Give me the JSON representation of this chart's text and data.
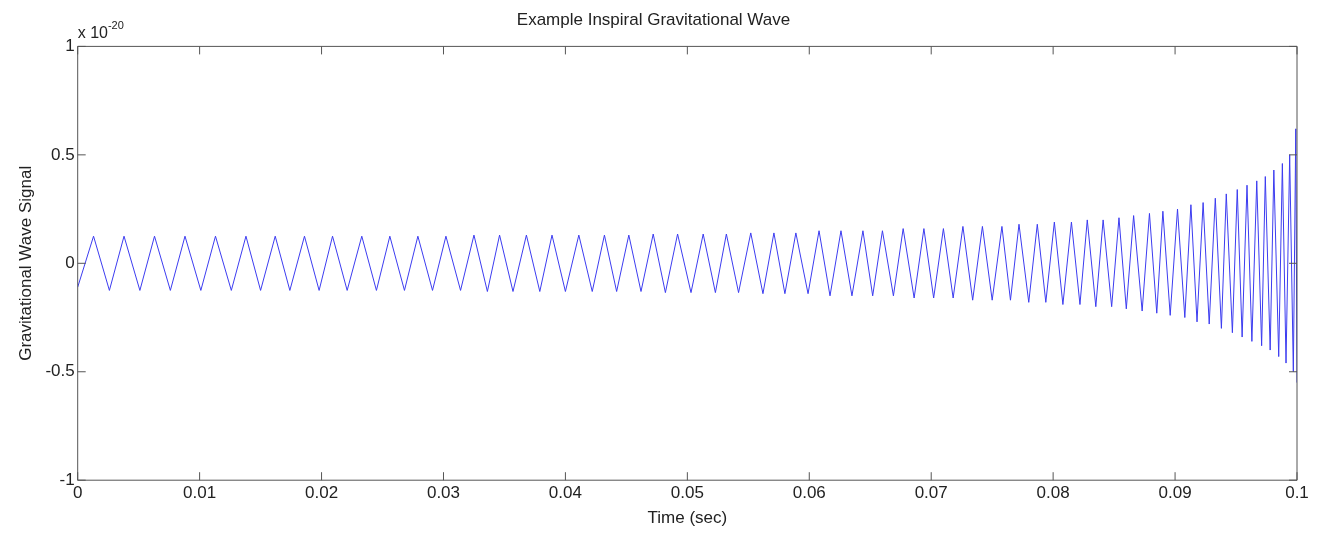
{
  "chart_data": {
    "type": "line",
    "title": "Example Inspiral Gravitational Wave",
    "xlabel": "Time (sec)",
    "ylabel": "Gravitational Wave Signal",
    "annotations": [
      "x 10$^{-20}$"
    ],
    "xlim": [
      0,
      0.1
    ],
    "xticks": [
      0,
      0.01,
      0.02,
      0.03,
      0.04,
      0.05,
      0.06,
      0.07,
      0.08,
      0.09,
      0.1
    ],
    "ylim": [
      -1,
      1
    ],
    "yticks": [
      -1,
      -0.5,
      0,
      0.5,
      1
    ],
    "marker": "none",
    "line_style": "solid",
    "legend": false,
    "series": [
      {
        "color": "#3c3cf0",
        "x": [
          0,
          0.0013,
          0.0026,
          0.0038,
          0.0051,
          0.0063,
          0.0076,
          0.0088,
          0.0101,
          0.0113,
          0.0126,
          0.0138,
          0.015,
          0.0162,
          0.0174,
          0.0186,
          0.0198,
          0.0209,
          0.0221,
          0.0233,
          0.0245,
          0.0256,
          0.0268,
          0.0279,
          0.0291,
          0.0302,
          0.0314,
          0.0325,
          0.0336,
          0.0346,
          0.0357,
          0.0368,
          0.0379,
          0.0389,
          0.04,
          0.0411,
          0.0422,
          0.0432,
          0.0442,
          0.0452,
          0.0462,
          0.0472,
          0.0482,
          0.0492,
          0.0503,
          0.0513,
          0.0523,
          0.0532,
          0.0542,
          0.0552,
          0.0562,
          0.0571,
          0.058,
          0.0589,
          0.0599,
          0.0608,
          0.0617,
          0.0626,
          0.0635,
          0.0644,
          0.0652,
          0.066,
          0.0669,
          0.0677,
          0.0686,
          0.0694,
          0.0702,
          0.071,
          0.0718,
          0.0726,
          0.0734,
          0.0742,
          0.075,
          0.0758,
          0.0765,
          0.0772,
          0.078,
          0.0787,
          0.0794,
          0.0801,
          0.0808,
          0.0815,
          0.0822,
          0.0828,
          0.0835,
          0.0841,
          0.0848,
          0.0854,
          0.086,
          0.0866,
          0.0873,
          0.0879,
          0.0885,
          0.089,
          0.0896,
          0.0902,
          0.0908,
          0.0913,
          0.0918,
          0.0923,
          0.0928,
          0.0933,
          0.0938,
          0.0942,
          0.0947,
          0.0951,
          0.0955,
          0.0959,
          0.0963,
          0.0967,
          0.0971,
          0.0974,
          0.0978,
          0.0981,
          0.0985,
          0.0988,
          0.0991,
          0.0994,
          0.0997,
          0.0999,
          0.1
        ],
        "values": [
          -0.11,
          0.125,
          -0.125,
          0.125,
          -0.125,
          0.125,
          -0.125,
          0.125,
          -0.125,
          0.125,
          -0.125,
          0.125,
          -0.125,
          0.125,
          -0.125,
          0.125,
          -0.125,
          0.125,
          -0.125,
          0.125,
          -0.125,
          0.125,
          -0.125,
          0.125,
          -0.125,
          0.125,
          -0.125,
          0.13,
          -0.13,
          0.13,
          -0.13,
          0.13,
          -0.13,
          0.13,
          -0.13,
          0.13,
          -0.13,
          0.13,
          -0.13,
          0.13,
          -0.13,
          0.135,
          -0.135,
          0.135,
          -0.135,
          0.135,
          -0.135,
          0.135,
          -0.135,
          0.14,
          -0.14,
          0.14,
          -0.14,
          0.14,
          -0.14,
          0.15,
          -0.15,
          0.15,
          -0.15,
          0.15,
          -0.15,
          0.15,
          -0.15,
          0.16,
          -0.16,
          0.16,
          -0.16,
          0.16,
          -0.16,
          0.17,
          -0.17,
          0.17,
          -0.17,
          0.17,
          -0.17,
          0.18,
          -0.18,
          0.18,
          -0.18,
          0.19,
          -0.19,
          0.19,
          -0.19,
          0.2,
          -0.2,
          0.2,
          -0.2,
          0.21,
          -0.21,
          0.22,
          -0.22,
          0.23,
          -0.23,
          0.24,
          -0.24,
          0.25,
          -0.25,
          0.27,
          -0.27,
          0.28,
          -0.28,
          0.3,
          -0.3,
          0.32,
          -0.32,
          0.34,
          -0.34,
          0.36,
          -0.36,
          0.38,
          -0.38,
          0.4,
          -0.4,
          0.43,
          -0.43,
          0.46,
          -0.46,
          0.5,
          -0.5,
          0.62,
          -0.55
        ]
      }
    ]
  }
}
